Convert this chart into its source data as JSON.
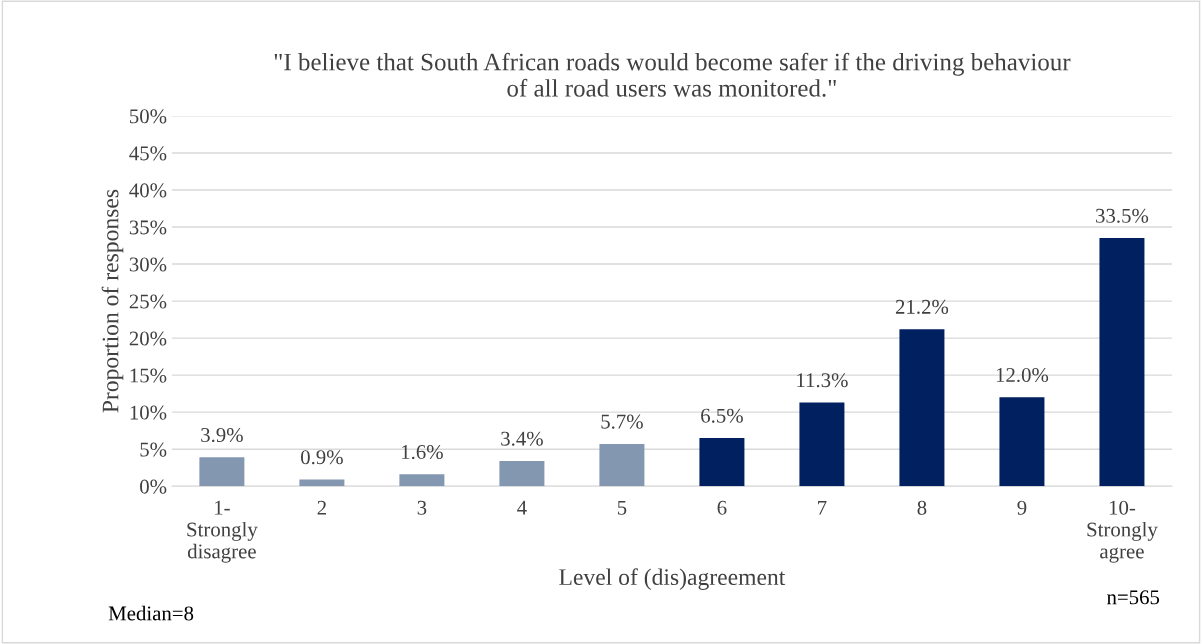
{
  "chart_data": {
    "type": "bar",
    "title": "\"I believe that South African roads would become safer if the driving behaviour\nof all road users was monitored.\"",
    "xlabel": "Level of (dis)agreement",
    "ylabel": "Proportion of responses",
    "categories": [
      "1-\nStrongly\ndisagree",
      "2",
      "3",
      "4",
      "5",
      "6",
      "7",
      "8",
      "9",
      "10-\nStrongly\nagree"
    ],
    "values": [
      3.9,
      0.9,
      1.6,
      3.4,
      5.7,
      6.5,
      11.3,
      21.2,
      12.0,
      33.5
    ],
    "value_labels": [
      "3.9%",
      "0.9%",
      "1.6%",
      "3.4%",
      "5.7%",
      "6.5%",
      "11.3%",
      "21.2%",
      "12.0%",
      "33.5%"
    ],
    "colors": [
      "#8497b0",
      "#8497b0",
      "#8497b0",
      "#8497b0",
      "#8497b0",
      "#002060",
      "#002060",
      "#002060",
      "#002060",
      "#002060"
    ],
    "ylim": [
      0,
      50
    ],
    "yticks": [
      {
        "value": 0,
        "label": "0%"
      },
      {
        "value": 5,
        "label": "5%"
      },
      {
        "value": 10,
        "label": "10%"
      },
      {
        "value": 15,
        "label": "15%"
      },
      {
        "value": 20,
        "label": "20%"
      },
      {
        "value": 25,
        "label": "25%"
      },
      {
        "value": 30,
        "label": "30%"
      },
      {
        "value": 35,
        "label": "35%"
      },
      {
        "value": 40,
        "label": "40%"
      },
      {
        "value": 45,
        "label": "45%"
      },
      {
        "value": 50,
        "label": "50%"
      }
    ],
    "grid": "y",
    "legend": false,
    "annotations": [
      "Median=8",
      "n=565"
    ]
  }
}
